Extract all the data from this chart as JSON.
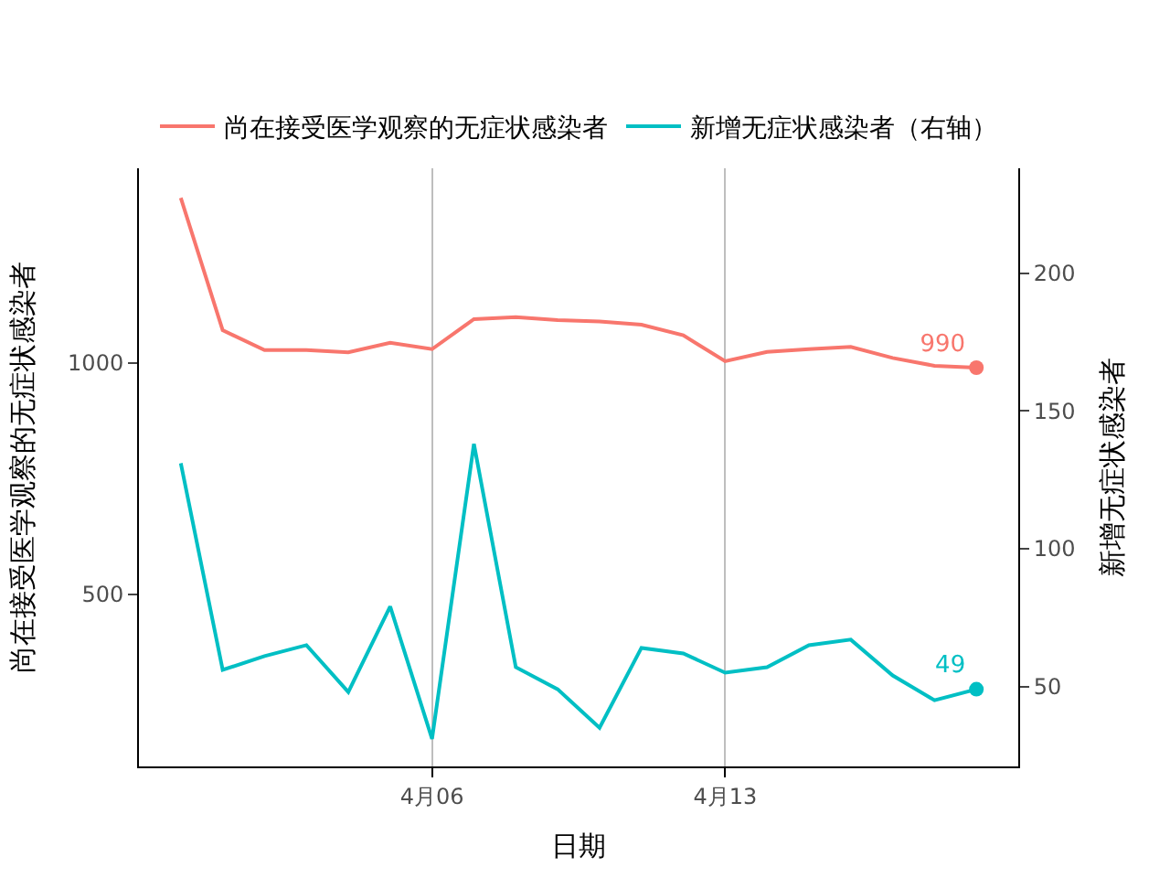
{
  "chart_data": {
    "type": "line",
    "xlabel": "日期",
    "ylabel": "尚在接受医学观察的无症状感染者",
    "y2label": "新增无症状感染者",
    "x": [
      "--03-31",
      "--04-01",
      "--04-02",
      "--04-03",
      "--04-04",
      "--04-05",
      "--04-06",
      "--04-07",
      "--04-08",
      "--04-09",
      "--04-10",
      "--04-11",
      "--04-12",
      "--04-13",
      "--04-14",
      "--04-15",
      "--04-16",
      "--04-17",
      "--04-18",
      "--04-19"
    ],
    "series": [
      {
        "name": "尚在接受医学观察的无症状感染者",
        "color": "#f8766d",
        "values": [
          1357,
          1071,
          1028,
          1028,
          1023,
          1044,
          1030,
          1095,
          1099,
          1093,
          1090,
          1083,
          1060,
          1004,
          1024,
          1030,
          1035,
          1011,
          994,
          990
        ]
      },
      {
        "name": "新增无症状感染者（右轴）",
        "color": "#00bfc4",
        "axis": "y2",
        "values": [
          131,
          56,
          61,
          65,
          48,
          79,
          31,
          138,
          57,
          49,
          35,
          64,
          62,
          55,
          57,
          65,
          67,
          54,
          45,
          49
        ]
      },
      {
        "type": "scatter",
        "marker": "circle",
        "color": "#f8766d",
        "x": [
          "--04-19"
        ],
        "values": [
          990
        ],
        "value_labels": [
          "990"
        ]
      },
      {
        "type": "scatter",
        "marker": "circle",
        "color": "#00bfc4",
        "axis": "y2",
        "x": [
          "--04-19"
        ],
        "values": [
          49
        ],
        "value_labels": [
          "49"
        ]
      }
    ],
    "xlim": [
      "--03-30",
      "--04-20"
    ],
    "xticks": [
      {
        "value": "--04-06",
        "label": "4月06"
      },
      {
        "value": "--04-13",
        "label": "4月13"
      }
    ],
    "ylim": [
      128,
      1421
    ],
    "yticks": [
      500,
      1000
    ],
    "y2lim": [
      21,
      238
    ],
    "y2ticks": [
      50,
      100,
      150,
      200
    ],
    "grid": "x",
    "legend": "top"
  }
}
